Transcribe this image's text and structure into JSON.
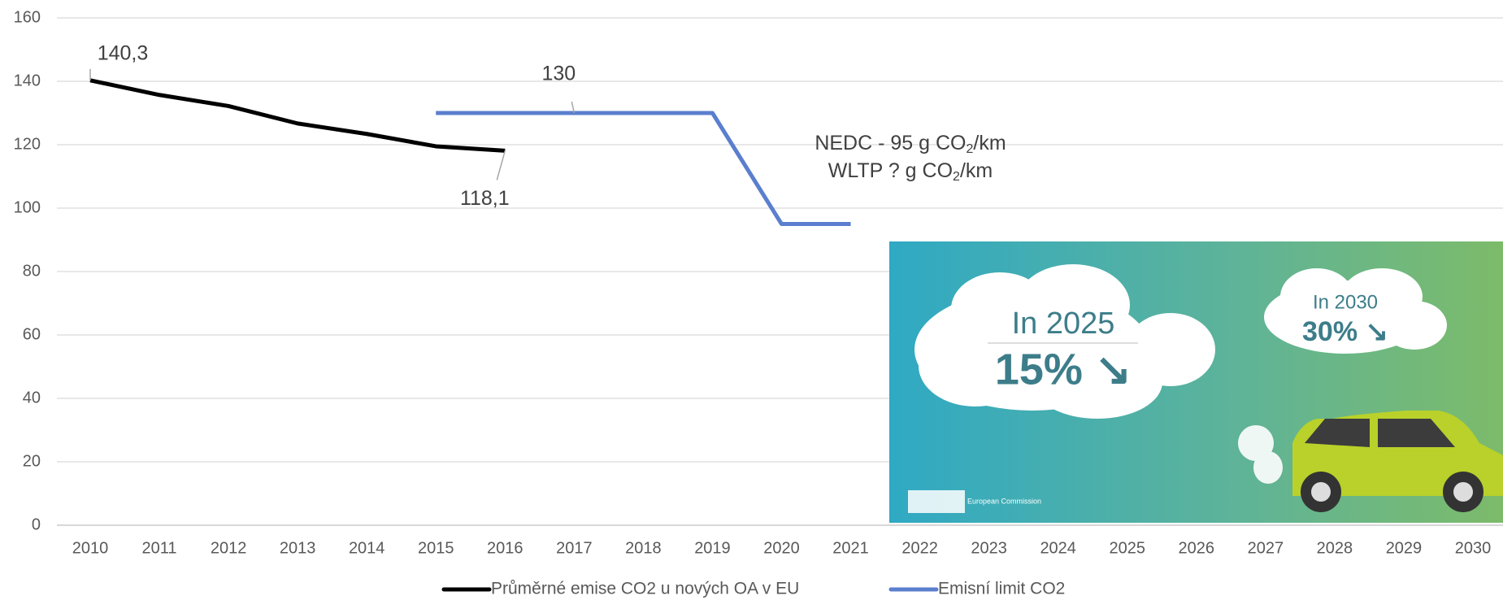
{
  "chart_data": {
    "type": "line",
    "categories": [
      "2010",
      "2011",
      "2012",
      "2013",
      "2014",
      "2015",
      "2016",
      "2017",
      "2018",
      "2019",
      "2020",
      "2021",
      "2022",
      "2023",
      "2024",
      "2025",
      "2026",
      "2027",
      "2028",
      "2029",
      "2030"
    ],
    "series": [
      {
        "name": "Průměrné emise CO2 u nových OA v EU",
        "color": "#000000",
        "values": [
          140.3,
          135.7,
          132.2,
          126.7,
          123.4,
          119.5,
          118.1,
          null,
          null,
          null,
          null,
          null,
          null,
          null,
          null,
          null,
          null,
          null,
          null,
          null,
          null
        ],
        "value_labels": [
          "140,3",
          null,
          null,
          null,
          null,
          null,
          "118,1",
          null,
          null,
          null,
          null,
          null,
          null,
          null,
          null,
          null,
          null,
          null,
          null,
          null,
          null
        ]
      },
      {
        "name": "Emisní limit CO2",
        "color": "#5b7fce",
        "values": [
          null,
          null,
          null,
          null,
          null,
          130,
          130,
          130,
          130,
          130,
          95,
          95,
          null,
          null,
          null,
          null,
          null,
          null,
          null,
          null,
          null
        ],
        "value_labels": [
          null,
          null,
          null,
          null,
          null,
          null,
          null,
          "130",
          null,
          null,
          null,
          null,
          null,
          null,
          null,
          null,
          null,
          null,
          null,
          null,
          null
        ]
      }
    ],
    "ylim": [
      0,
      160
    ],
    "yticks": [
      0,
      20,
      40,
      60,
      80,
      100,
      120,
      140,
      160
    ],
    "grid": true,
    "legend": "bottom",
    "annotations": [
      {
        "parts": [
          "NEDC -  95 g CO",
          "2",
          "/km"
        ]
      },
      {
        "parts": [
          "WLTP   ?  g CO",
          "2",
          "/km"
        ]
      }
    ],
    "image_texts": [
      "In 2025",
      "15% ↘",
      "In 2030",
      "30% ↘",
      "European Commission"
    ]
  }
}
